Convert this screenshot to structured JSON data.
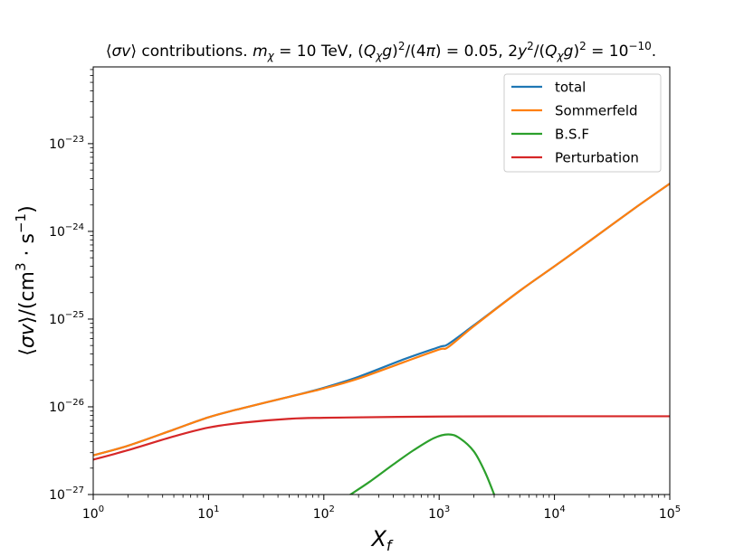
{
  "chart_data": {
    "type": "line",
    "title": "⟨σv⟩ contributions. m_χ = 10 TeV, (Q_χ g)²/(4π) = 0.05, 2y²/(Q_χ g)² = 10⁻¹⁰.",
    "xlabel": "X_f",
    "ylabel": "⟨σv⟩/(cm³ · s⁻¹)",
    "xscale": "log",
    "yscale": "log",
    "xlim": [
      1,
      100000
    ],
    "ylim": [
      1e-27,
      7.5e-23
    ],
    "grid": false,
    "legend_position": "top-right",
    "x_ticks": [
      {
        "value": 1,
        "base": "10",
        "exp": "0"
      },
      {
        "value": 10,
        "base": "10",
        "exp": "1"
      },
      {
        "value": 100,
        "base": "10",
        "exp": "2"
      },
      {
        "value": 1000,
        "base": "10",
        "exp": "3"
      },
      {
        "value": 10000,
        "base": "10",
        "exp": "4"
      },
      {
        "value": 100000,
        "base": "10",
        "exp": "5"
      }
    ],
    "y_ticks": [
      {
        "value": 1e-27,
        "base": "10",
        "exp": "−27"
      },
      {
        "value": 1e-26,
        "base": "10",
        "exp": "−26"
      },
      {
        "value": 1e-25,
        "base": "10",
        "exp": "−25"
      },
      {
        "value": 1e-24,
        "base": "10",
        "exp": "−24"
      },
      {
        "value": 1e-23,
        "base": "10",
        "exp": "−23"
      }
    ],
    "series": [
      {
        "name": "total",
        "color": "#1f77b4",
        "x": [
          1,
          2,
          5,
          10,
          20,
          50,
          100,
          200,
          500,
          1000,
          1200,
          2000,
          5000,
          10000,
          20000,
          50000,
          100000
        ],
        "y": [
          2.8e-27,
          3.6e-27,
          5.5e-27,
          7.6e-27,
          9.7e-27,
          1.3e-26,
          1.65e-26,
          2.2e-26,
          3.5e-26,
          4.8e-26,
          5.2e-26,
          8.5e-26,
          2.1e-25,
          4e-25,
          7.7e-25,
          1.85e-24,
          3.5e-24
        ]
      },
      {
        "name": "Sommerfeld",
        "color": "#ff7f0e",
        "x": [
          1,
          2,
          5,
          10,
          20,
          50,
          100,
          200,
          500,
          1000,
          1200,
          2000,
          5000,
          10000,
          20000,
          50000,
          100000
        ],
        "y": [
          2.8e-27,
          3.6e-27,
          5.5e-27,
          7.6e-27,
          9.7e-27,
          1.3e-26,
          1.62e-26,
          2.1e-26,
          3.25e-26,
          4.5e-26,
          4.8e-26,
          8.3e-26,
          2.1e-25,
          4e-25,
          7.7e-25,
          1.85e-24,
          3.5e-24
        ]
      },
      {
        "name": "B.S.F",
        "color": "#2ca02c",
        "x": [
          170,
          250,
          400,
          600,
          900,
          1200,
          1500,
          2000,
          2500,
          3000
        ],
        "y": [
          1e-27,
          1.4e-27,
          2.2e-27,
          3.2e-27,
          4.4e-27,
          4.85e-27,
          4.4e-27,
          3.1e-27,
          1.8e-27,
          1e-27
        ]
      },
      {
        "name": "Perturbation",
        "color": "#d62728",
        "x": [
          1,
          2,
          5,
          10,
          20,
          50,
          100,
          1000,
          10000,
          100000
        ],
        "y": [
          2.5e-27,
          3.2e-27,
          4.6e-27,
          5.8e-27,
          6.6e-27,
          7.3e-27,
          7.5e-27,
          7.75e-27,
          7.8e-27,
          7.8e-27
        ]
      }
    ]
  }
}
